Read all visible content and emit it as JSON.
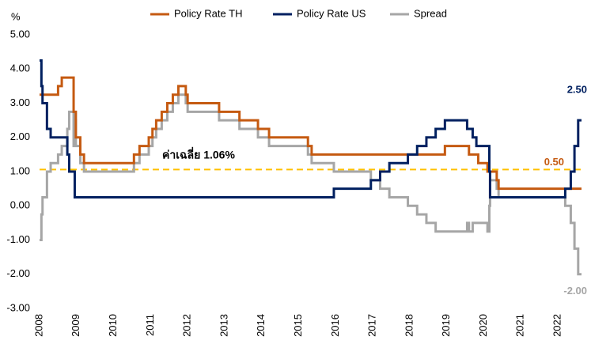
{
  "chart_data": {
    "type": "line",
    "step": true,
    "y_label": "%",
    "xlim": [
      2008,
      2022.64
    ],
    "xticks": [
      2008,
      2009,
      2010,
      2011,
      2012,
      2013,
      2014,
      2015,
      2016,
      2017,
      2018,
      2019,
      2020,
      2021,
      2022
    ],
    "ylim": [
      -3,
      5
    ],
    "yticks": [
      {
        "value": 5,
        "label": "5.00"
      },
      {
        "value": 4,
        "label": "4.00"
      },
      {
        "value": 3,
        "label": "3.00"
      },
      {
        "value": 2,
        "label": "2.00"
      },
      {
        "value": 1,
        "label": "1.00"
      },
      {
        "value": 0,
        "label": "0.00"
      },
      {
        "value": -1,
        "label": "-1.00"
      },
      {
        "value": -2,
        "label": "-2.00"
      },
      {
        "value": -3,
        "label": "-3.00"
      }
    ],
    "grid": false,
    "legend": "top",
    "average": {
      "value": 1.06,
      "label": "ค่าเฉลี่ย 1.06%",
      "color": "#ffc000"
    },
    "series": [
      {
        "name": "Policy Rate TH",
        "color": "#c55a11",
        "end_label": "0.50",
        "x": [
          2008.0,
          2008.5,
          2008.6,
          2008.92,
          2008.98,
          2009.1,
          2009.2,
          2010.55,
          2010.7,
          2010.95,
          2011.05,
          2011.15,
          2011.3,
          2011.45,
          2011.6,
          2011.75,
          2011.95,
          2012.0,
          2012.85,
          2013.4,
          2013.9,
          2014.2,
          2015.25,
          2015.35,
          2018.95,
          2019.6,
          2019.85,
          2020.1,
          2020.35,
          2020.4,
          2022.64
        ],
        "values": [
          3.25,
          3.5,
          3.75,
          2.75,
          2.0,
          1.5,
          1.25,
          1.5,
          1.75,
          2.0,
          2.25,
          2.5,
          2.75,
          3.0,
          3.25,
          3.5,
          3.25,
          3.0,
          2.75,
          2.5,
          2.25,
          2.0,
          1.75,
          1.5,
          1.75,
          1.5,
          1.25,
          1.0,
          0.75,
          0.5,
          0.5
        ]
      },
      {
        "name": "Policy Rate US",
        "color": "#002060",
        "end_label": "2.50",
        "x": [
          2008.0,
          2008.05,
          2008.08,
          2008.2,
          2008.3,
          2008.75,
          2008.8,
          2008.95,
          2015.95,
          2016.95,
          2017.2,
          2017.45,
          2017.95,
          2018.2,
          2018.45,
          2018.7,
          2018.95,
          2019.55,
          2019.7,
          2019.8,
          2020.15,
          2020.17,
          2022.2,
          2022.35,
          2022.45,
          2022.55,
          2022.64
        ],
        "values": [
          4.25,
          3.5,
          3.0,
          2.25,
          2.0,
          1.5,
          1.0,
          0.25,
          0.5,
          0.75,
          1.0,
          1.25,
          1.5,
          1.75,
          2.0,
          2.25,
          2.5,
          2.25,
          2.0,
          1.75,
          1.0,
          0.25,
          0.5,
          1.0,
          1.75,
          2.5,
          2.5
        ]
      },
      {
        "name": "Spread",
        "color": "#a6a6a6",
        "end_label": "-2.00",
        "x": [
          2008.0,
          2008.05,
          2008.08,
          2008.2,
          2008.3,
          2008.5,
          2008.6,
          2008.75,
          2008.8,
          2008.92,
          2008.95,
          2008.98,
          2009.1,
          2009.2,
          2010.55,
          2010.7,
          2010.95,
          2011.05,
          2011.15,
          2011.3,
          2011.45,
          2011.6,
          2011.75,
          2011.95,
          2012.0,
          2012.85,
          2013.4,
          2013.9,
          2014.2,
          2015.25,
          2015.35,
          2015.95,
          2016.95,
          2017.2,
          2017.45,
          2017.95,
          2018.2,
          2018.45,
          2018.7,
          2018.95,
          2019.55,
          2019.6,
          2019.7,
          2019.85,
          2020.1,
          2020.15,
          2020.17,
          2020.35,
          2020.4,
          2022.2,
          2022.35,
          2022.45,
          2022.55,
          2022.64
        ],
        "values": [
          -1.0,
          -0.25,
          0.25,
          1.0,
          1.25,
          1.5,
          1.75,
          2.25,
          2.75,
          1.75,
          2.5,
          1.75,
          1.25,
          1.0,
          1.25,
          1.5,
          1.75,
          2.0,
          2.25,
          2.5,
          2.75,
          3.0,
          3.25,
          3.0,
          2.75,
          2.5,
          2.25,
          2.0,
          1.75,
          1.5,
          1.25,
          1.0,
          0.75,
          0.5,
          0.25,
          0.0,
          -0.25,
          -0.5,
          -0.75,
          -0.75,
          -0.5,
          -0.75,
          -0.5,
          -0.5,
          -0.75,
          0.0,
          0.75,
          0.5,
          0.25,
          0.0,
          -0.5,
          -1.25,
          -2.0,
          -2.0
        ]
      }
    ]
  }
}
